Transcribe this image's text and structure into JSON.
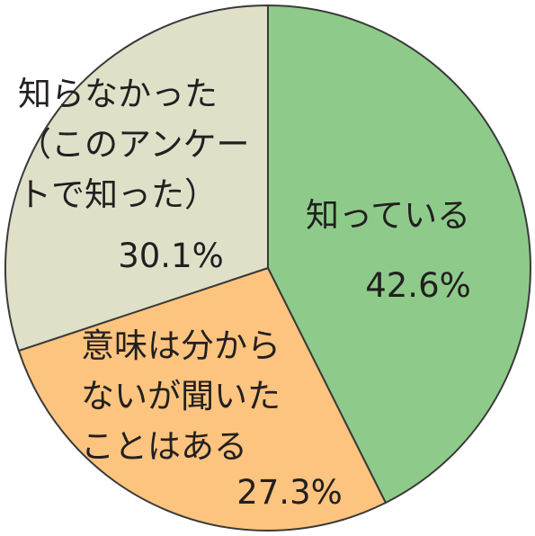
{
  "chart_data": {
    "type": "pie",
    "categories": [
      "知っている",
      "意味は分から\nないが聞いた\nことはある",
      "知らなかった\n（このアンケー\nトで知った）"
    ],
    "values": [
      42.6,
      27.3,
      30.1
    ],
    "value_labels": [
      "42.6%",
      "27.3%",
      "30.1%"
    ],
    "colors": [
      "#8ecb8a",
      "#fcc47e",
      "#e0e0c9"
    ]
  }
}
